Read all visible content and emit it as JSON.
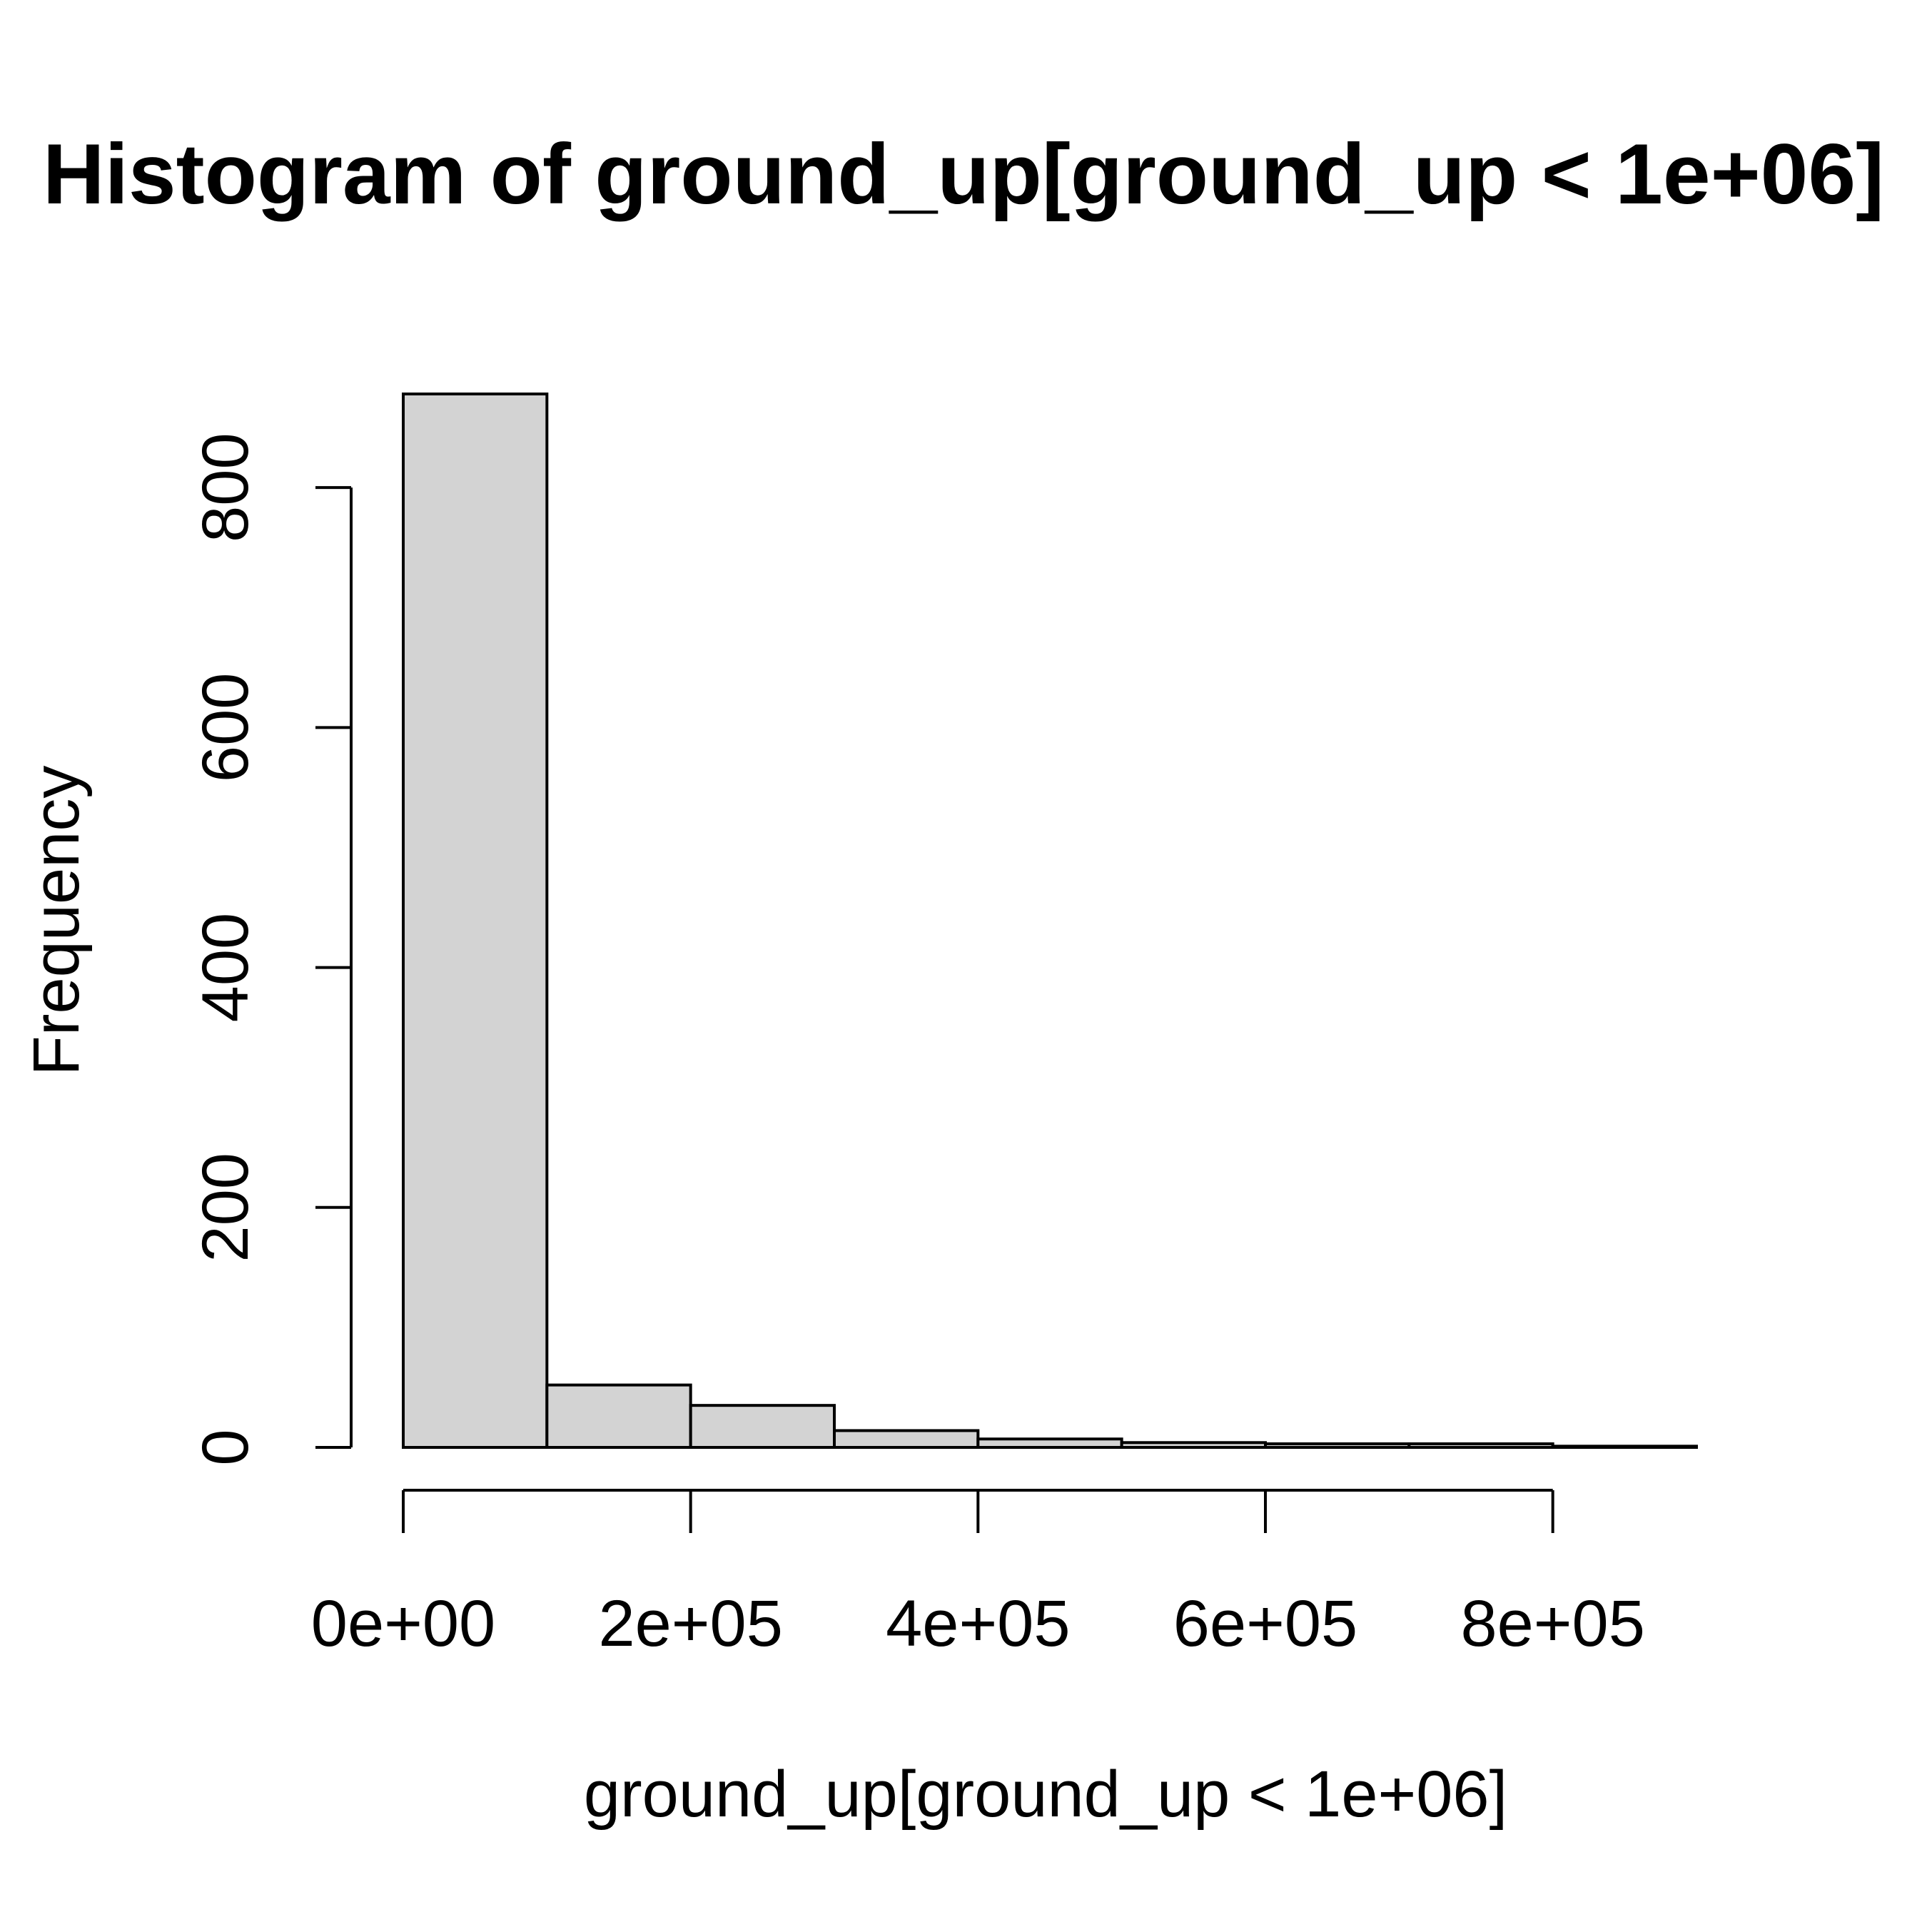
{
  "chart_data": {
    "type": "bar",
    "title": "Histogram of ground_up[ground_up < 1e+06]",
    "xlabel": "ground_up[ground_up < 1e+06]",
    "ylabel": "Frequency",
    "bins": [
      {
        "start": 0,
        "end": 100000,
        "count": 878
      },
      {
        "start": 100000,
        "end": 200000,
        "count": 52
      },
      {
        "start": 200000,
        "end": 300000,
        "count": 35
      },
      {
        "start": 300000,
        "end": 400000,
        "count": 14
      },
      {
        "start": 400000,
        "end": 500000,
        "count": 7
      },
      {
        "start": 500000,
        "end": 600000,
        "count": 4
      },
      {
        "start": 600000,
        "end": 700000,
        "count": 3
      },
      {
        "start": 700000,
        "end": 800000,
        "count": 3
      },
      {
        "start": 800000,
        "end": 900000,
        "count": 1
      }
    ],
    "xlim": [
      0,
      900000
    ],
    "ylim": [
      0,
      878
    ],
    "x_ticks": [
      {
        "value": 0,
        "label": "0e+00"
      },
      {
        "value": 200000,
        "label": "2e+05"
      },
      {
        "value": 400000,
        "label": "4e+05"
      },
      {
        "value": 600000,
        "label": "6e+05"
      },
      {
        "value": 800000,
        "label": "8e+05"
      }
    ],
    "y_ticks": [
      {
        "value": 0,
        "label": "0"
      },
      {
        "value": 200,
        "label": "200"
      },
      {
        "value": 400,
        "label": "400"
      },
      {
        "value": 600,
        "label": "600"
      },
      {
        "value": 800,
        "label": "800"
      }
    ],
    "bar_fill": "#d3d3d3",
    "grid": false,
    "legend": "none"
  }
}
